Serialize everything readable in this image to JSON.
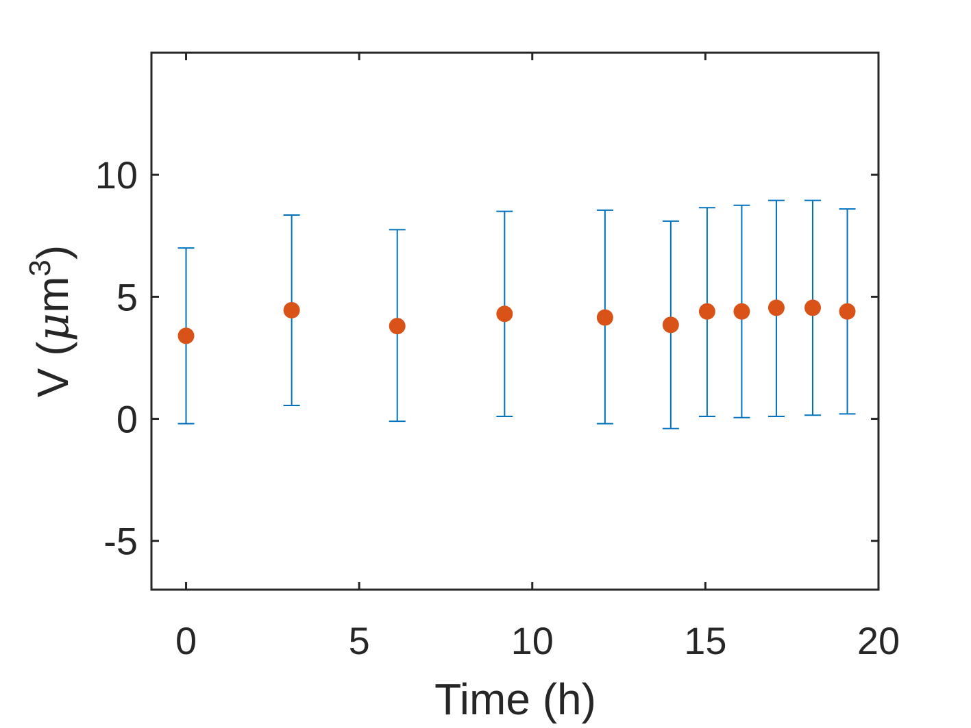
{
  "chart_data": {
    "type": "scatter",
    "xlabel": "Time (h)",
    "ylabel": {
      "prefix": "V (",
      "mu": "μ",
      "unit": "m",
      "sup": "3",
      "suffix": ")"
    },
    "xlim": [
      -1,
      20
    ],
    "ylim": [
      -7,
      15
    ],
    "xticks": [
      0,
      5,
      10,
      15,
      20
    ],
    "yticks": [
      -5,
      0,
      5,
      10
    ],
    "xtick_labels": [
      "0",
      "5",
      "10",
      "15",
      "20"
    ],
    "ytick_labels": [
      "-5",
      "0",
      "5",
      "10"
    ],
    "grid": false,
    "series": [
      {
        "marker_color": "#D95319",
        "errorbar_color": "#0072BD",
        "points": [
          {
            "x": 0.0,
            "y": 3.4,
            "lower": -0.2,
            "upper": 7.0
          },
          {
            "x": 3.05,
            "y": 4.45,
            "lower": 0.55,
            "upper": 8.35
          },
          {
            "x": 6.1,
            "y": 3.8,
            "lower": -0.1,
            "upper": 7.75
          },
          {
            "x": 9.2,
            "y": 4.3,
            "lower": 0.1,
            "upper": 8.5
          },
          {
            "x": 12.1,
            "y": 4.15,
            "lower": -0.2,
            "upper": 8.55
          },
          {
            "x": 14.0,
            "y": 3.85,
            "lower": -0.4,
            "upper": 8.1
          },
          {
            "x": 15.05,
            "y": 4.4,
            "lower": 0.1,
            "upper": 8.65
          },
          {
            "x": 16.05,
            "y": 4.4,
            "lower": 0.05,
            "upper": 8.75
          },
          {
            "x": 17.05,
            "y": 4.55,
            "lower": 0.1,
            "upper": 8.95
          },
          {
            "x": 18.1,
            "y": 4.55,
            "lower": 0.15,
            "upper": 8.95
          },
          {
            "x": 19.1,
            "y": 4.4,
            "lower": 0.2,
            "upper": 8.6
          }
        ]
      }
    ]
  }
}
